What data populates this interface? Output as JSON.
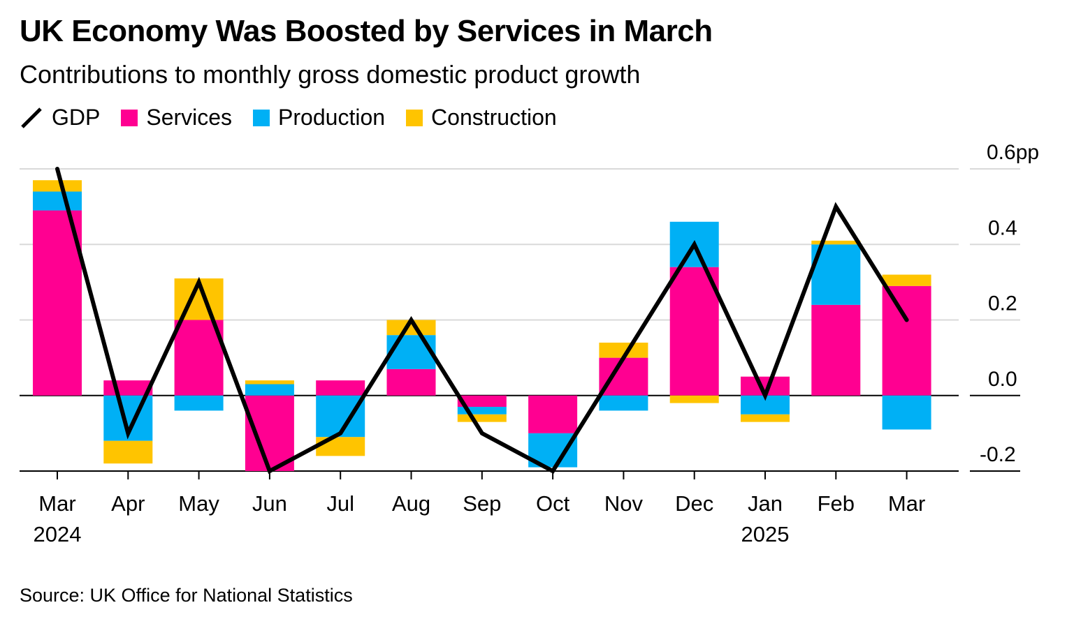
{
  "title": "UK Economy Was Boosted by Services in March",
  "subtitle": "Contributions to monthly gross domestic product growth",
  "source": "Source: UK Office for National Statistics",
  "colors": {
    "services": "#ff0091",
    "production": "#00b0f5",
    "construction": "#ffc400",
    "gdp": "#000000",
    "grid": "#d9d9d9"
  },
  "chart_data": {
    "type": "bar",
    "stacked": true,
    "categories": [
      "Mar",
      "Apr",
      "May",
      "Jun",
      "Jul",
      "Aug",
      "Sep",
      "Oct",
      "Nov",
      "Dec",
      "Jan",
      "Feb",
      "Mar"
    ],
    "year_labels": [
      {
        "category_index": 0,
        "label": "2024"
      },
      {
        "category_index": 10,
        "label": "2025"
      }
    ],
    "series": [
      {
        "name": "Services",
        "type": "bar",
        "values": [
          0.49,
          0.04,
          0.2,
          -0.2,
          0.04,
          0.07,
          -0.03,
          -0.1,
          0.1,
          0.34,
          0.05,
          0.24,
          0.29
        ]
      },
      {
        "name": "Production",
        "type": "bar",
        "values": [
          0.05,
          -0.12,
          -0.04,
          0.03,
          -0.11,
          0.09,
          -0.02,
          -0.09,
          -0.04,
          0.12,
          -0.05,
          0.16,
          -0.09
        ]
      },
      {
        "name": "Construction",
        "type": "bar",
        "values": [
          0.03,
          -0.06,
          0.11,
          0.01,
          -0.05,
          0.04,
          -0.02,
          0.0,
          0.04,
          -0.02,
          -0.02,
          0.01,
          0.03
        ]
      },
      {
        "name": "GDP",
        "type": "line",
        "values": [
          0.6,
          -0.1,
          0.3,
          -0.2,
          -0.1,
          0.2,
          -0.1,
          -0.2,
          0.1,
          0.4,
          0.0,
          0.5,
          0.2
        ]
      }
    ],
    "y_ticks": [
      {
        "value": 0.6,
        "label": "0.6pp"
      },
      {
        "value": 0.4,
        "label": "0.4"
      },
      {
        "value": 0.2,
        "label": "0.2"
      },
      {
        "value": 0.0,
        "label": "0.0"
      },
      {
        "value": -0.2,
        "label": "-0.2"
      }
    ],
    "ylim": [
      -0.2,
      0.6
    ],
    "y_axis_position": "right",
    "grid": true,
    "legend_position": "top-left"
  }
}
